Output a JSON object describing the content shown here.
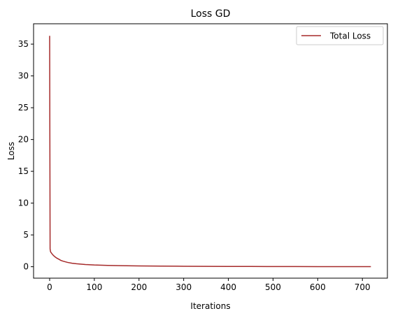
{
  "chart_data": {
    "type": "line",
    "title": "Loss GD",
    "xlabel": "Iterations",
    "ylabel": "Loss",
    "xlim": [
      -36,
      756
    ],
    "ylim": [
      -1.8,
      38.2
    ],
    "xticks": [
      0,
      100,
      200,
      300,
      400,
      500,
      600,
      700
    ],
    "yticks": [
      0,
      5,
      10,
      15,
      20,
      25,
      30,
      35
    ],
    "grid": false,
    "legend_position": "top-right",
    "series": [
      {
        "name": "Total Loss",
        "color": "#a52a2a",
        "x": [
          0,
          1,
          2,
          3,
          5,
          8,
          12,
          16,
          20,
          25,
          30,
          40,
          50,
          60,
          80,
          100,
          130,
          160,
          200,
          250,
          300,
          350,
          400,
          450,
          500,
          550,
          600,
          650,
          700,
          719
        ],
        "y": [
          36.3,
          2.8,
          2.35,
          2.25,
          2.05,
          1.8,
          1.55,
          1.35,
          1.2,
          1.0,
          0.87,
          0.68,
          0.55,
          0.46,
          0.35,
          0.27,
          0.2,
          0.16,
          0.12,
          0.09,
          0.07,
          0.055,
          0.045,
          0.035,
          0.03,
          0.025,
          0.02,
          0.018,
          0.015,
          0.014
        ]
      }
    ]
  }
}
